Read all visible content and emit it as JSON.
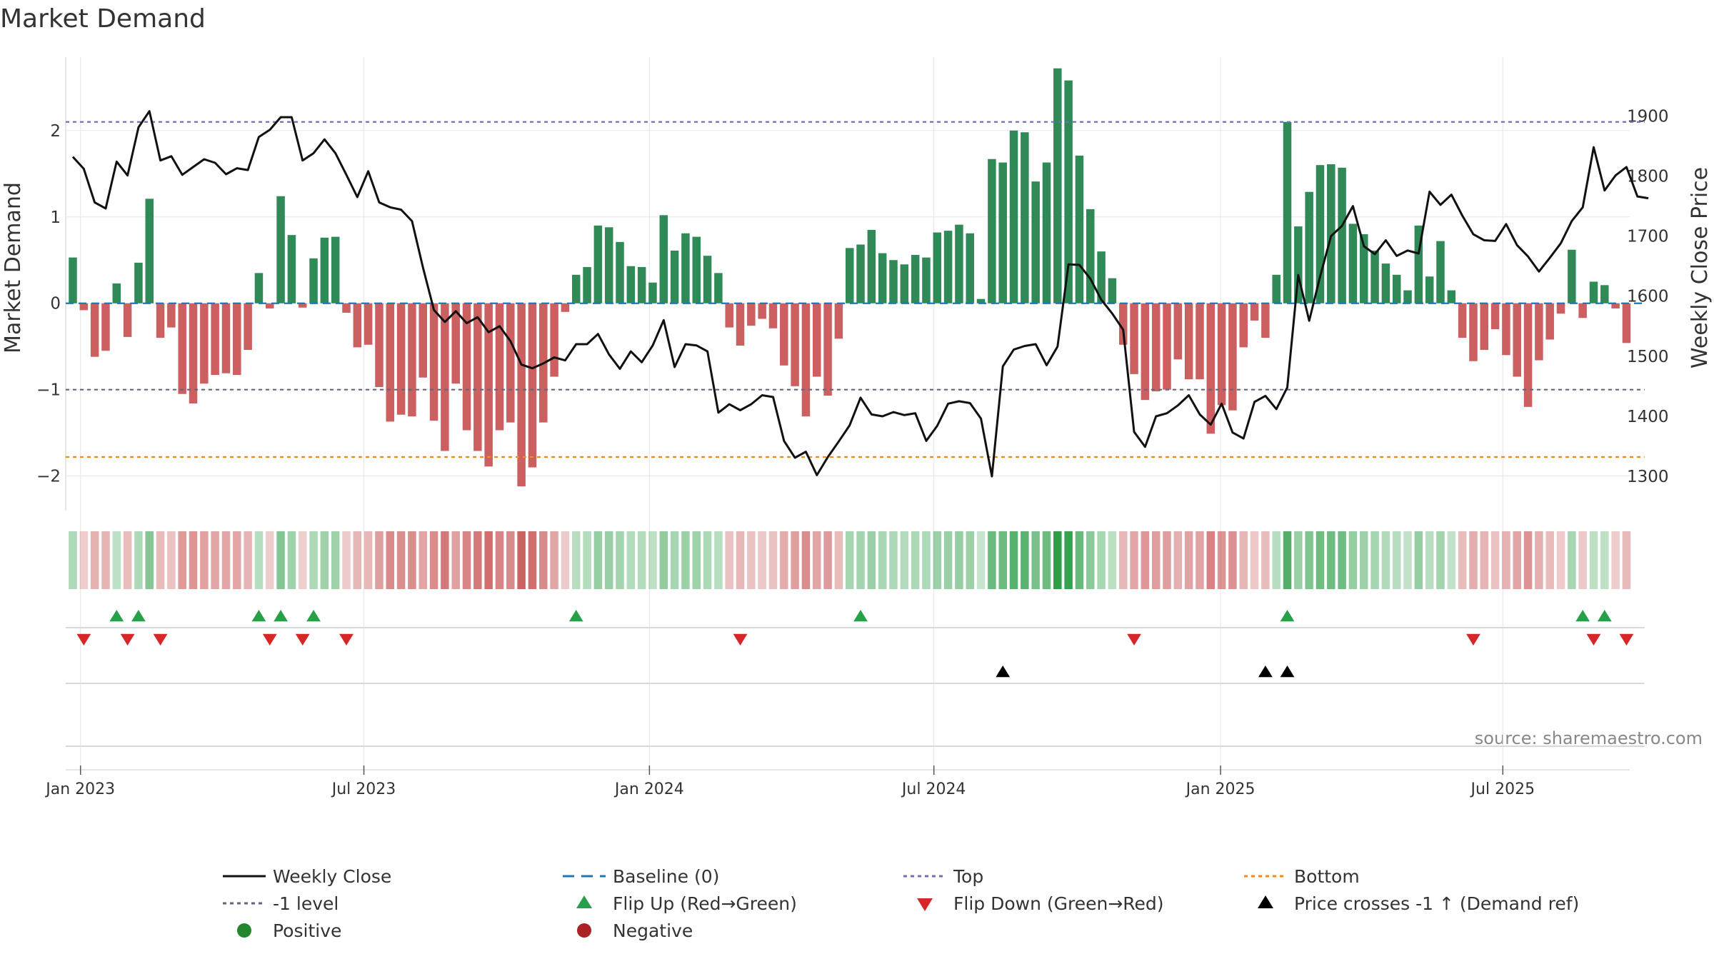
{
  "chart_data": {
    "type": "bar+line",
    "title": "Market Demand",
    "ylabel_left": "Market Demand",
    "ylabel_right": "Weekly Close Price",
    "ylim_left": [
      -2.4,
      2.85
    ],
    "ylim_right": [
      1243,
      1998
    ],
    "yticks_left": [
      2,
      1,
      0,
      -1,
      -2
    ],
    "ytick_labels_left": [
      "2",
      "1",
      "0",
      "−1",
      "−2"
    ],
    "yticks_right": [
      1900,
      1800,
      1700,
      1600,
      1500,
      1400,
      1300
    ],
    "ytick_labels_right": [
      "1900",
      "1800",
      "1700",
      "1600",
      "1500",
      "1400",
      "1300"
    ],
    "x_start": "2022-12-26",
    "x_week_count": 144,
    "xticks": [
      {
        "week": 0.7,
        "label": "Jan 2023"
      },
      {
        "week": 26.6,
        "label": "Jul 2023"
      },
      {
        "week": 52.7,
        "label": "Jan 2024"
      },
      {
        "week": 78.7,
        "label": "Jul 2024"
      },
      {
        "week": 104.9,
        "label": "Jan 2025"
      },
      {
        "week": 130.7,
        "label": "Jul 2025"
      }
    ],
    "reference_lines": {
      "top": 2.1,
      "minus_one": -1.0,
      "bottom": -1.78,
      "baseline": 0
    },
    "demand_values": [
      0.53,
      -0.08,
      -0.62,
      -0.55,
      0.23,
      -0.39,
      0.47,
      1.21,
      -0.4,
      -0.28,
      -1.05,
      -1.16,
      -0.93,
      -0.83,
      -0.81,
      -0.83,
      -0.54,
      0.35,
      -0.06,
      1.24,
      0.79,
      -0.05,
      0.52,
      0.76,
      0.77,
      -0.11,
      -0.51,
      -0.48,
      -0.97,
      -1.37,
      -1.29,
      -1.31,
      -0.86,
      -1.36,
      -1.71,
      -0.93,
      -1.47,
      -1.71,
      -1.89,
      -1.47,
      -1.38,
      -2.12,
      -1.9,
      -1.38,
      -0.85,
      -0.1,
      0.33,
      0.42,
      0.9,
      0.88,
      0.71,
      0.43,
      0.42,
      0.24,
      1.02,
      0.61,
      0.81,
      0.77,
      0.55,
      0.35,
      -0.28,
      -0.49,
      -0.26,
      -0.18,
      -0.29,
      -0.72,
      -0.96,
      -1.31,
      -0.85,
      -1.07,
      -0.41,
      0.64,
      0.68,
      0.85,
      0.58,
      0.5,
      0.45,
      0.56,
      0.53,
      0.82,
      0.84,
      0.91,
      0.81,
      0.05,
      1.67,
      1.63,
      2.0,
      1.98,
      1.41,
      1.63,
      2.72,
      2.58,
      1.71,
      1.09,
      0.6,
      0.29,
      -0.48,
      -0.82,
      -1.12,
      -1.02,
      -1.0,
      -0.65,
      -0.88,
      -0.88,
      -1.51,
      -1.18,
      -1.24,
      -0.51,
      -0.2,
      -0.4,
      0.33,
      2.1,
      0.89,
      1.29,
      1.6,
      1.61,
      1.57,
      0.92,
      0.8,
      0.61,
      0.46,
      0.33,
      0.15,
      0.9,
      0.31,
      0.72,
      0.15,
      -0.4,
      -0.67,
      -0.54,
      -0.3,
      -0.6,
      -0.85,
      -1.2,
      -0.66,
      -0.42,
      -0.12,
      0.62,
      -0.17,
      0.25,
      0.21,
      -0.06,
      -0.46
    ],
    "close_values": [
      1832,
      1812,
      1756,
      1746,
      1824,
      1801,
      1881,
      1908,
      1826,
      1833,
      1802,
      1815,
      1828,
      1822,
      1803,
      1813,
      1810,
      1865,
      1877,
      1898,
      1898,
      1826,
      1838,
      1861,
      1838,
      1802,
      1765,
      1808,
      1756,
      1748,
      1744,
      1725,
      1648,
      1577,
      1557,
      1575,
      1555,
      1565,
      1540,
      1550,
      1525,
      1486,
      1480,
      1488,
      1498,
      1493,
      1520,
      1520,
      1537,
      1503,
      1479,
      1508,
      1490,
      1518,
      1560,
      1482,
      1520,
      1518,
      1508,
      1406,
      1420,
      1410,
      1420,
      1435,
      1432,
      1359,
      1331,
      1341,
      1302,
      1332,
      1358,
      1385,
      1431,
      1403,
      1400,
      1407,
      1402,
      1405,
      1359,
      1384,
      1421,
      1425,
      1422,
      1396,
      1300,
      1483,
      1511,
      1517,
      1520,
      1485,
      1516,
      1653,
      1652,
      1629,
      1594,
      1571,
      1544,
      1374,
      1349,
      1400,
      1405,
      1418,
      1435,
      1403,
      1386,
      1421,
      1373,
      1363,
      1424,
      1434,
      1412,
      1448,
      1635,
      1559,
      1633,
      1700,
      1717,
      1750,
      1683,
      1670,
      1693,
      1667,
      1676,
      1671,
      1774,
      1752,
      1769,
      1734,
      1703,
      1693,
      1692,
      1720,
      1685,
      1666,
      1641,
      1664,
      1688,
      1725,
      1748,
      1848,
      1776,
      1801,
      1815,
      1766,
      1763
    ],
    "flip_up_weeks": [
      4,
      6,
      17,
      19,
      22,
      46,
      72,
      111,
      138,
      140
    ],
    "flip_down_weeks": [
      1,
      5,
      8,
      18,
      21,
      25,
      61,
      97,
      128,
      139,
      142
    ],
    "cross_weeks": [
      85,
      109,
      111
    ],
    "source": "source: sharemaestro.com",
    "legend": [
      {
        "label": "Weekly Close",
        "kind": "line-solid",
        "color": "#111111"
      },
      {
        "label": "Baseline (0)",
        "kind": "line-dash",
        "color": "#1f77b4"
      },
      {
        "label": "Top",
        "kind": "line-dot",
        "color": "#6f6fbf"
      },
      {
        "label": "Bottom",
        "kind": "line-dot",
        "color": "#ef8c1a"
      },
      {
        "label": "-1 level",
        "kind": "line-dot",
        "color": "#666677"
      },
      {
        "label": "Flip Up (Red→Green)",
        "kind": "tri-up",
        "color": "#27a04a"
      },
      {
        "label": "Flip Down (Green→Red)",
        "kind": "tri-down",
        "color": "#d62728"
      },
      {
        "label": "Price crosses -1 ↑ (Demand ref)",
        "kind": "tri-up",
        "color": "#000000"
      },
      {
        "label": "Positive",
        "kind": "dot",
        "color": "#23862f"
      },
      {
        "label": "Negative",
        "kind": "dot",
        "color": "#aa2222"
      }
    ],
    "colors": {
      "positive_bar": "#2f8a57",
      "negative_bar": "#cc5f5f",
      "positive_heat": "#2e9e48",
      "negative_heat": "#c34545",
      "flip_up": "#27a04a",
      "flip_down": "#d62728",
      "cross": "#000000",
      "close_line": "#111111",
      "baseline": "#1f77b4",
      "top": "#6f6fbf",
      "bottom": "#ef8c1a",
      "minus_one": "#666677",
      "grid": "#e3e6ea"
    }
  }
}
